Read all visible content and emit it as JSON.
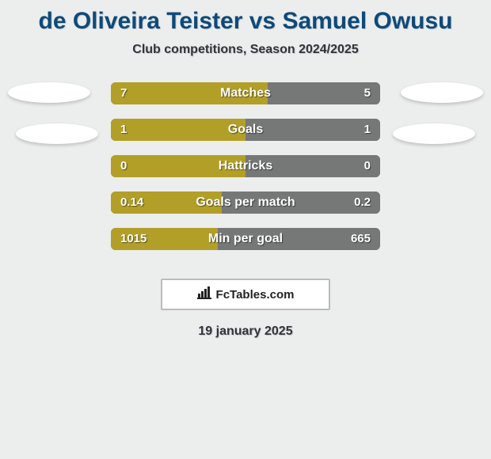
{
  "title_color": "#0d4a7a",
  "text_color": "#31343a",
  "background_color": "#eceded",
  "title": "de Oliveira Teister vs Samuel Owusu",
  "subtitle": "Club competitions, Season 2024/2025",
  "date": "19 january 2025",
  "attribution": "FcTables.com",
  "bar_track_color": "#767777",
  "bar_left_color": "#b29f28",
  "bar_right_color": "#767777",
  "rows": [
    {
      "label": "Matches",
      "left": "7",
      "right": "5",
      "left_pct": 58.3,
      "right_pct": 41.7
    },
    {
      "label": "Goals",
      "left": "1",
      "right": "1",
      "left_pct": 50.0,
      "right_pct": 50.0
    },
    {
      "label": "Hattricks",
      "left": "0",
      "right": "0",
      "left_pct": 50.0,
      "right_pct": 50.0
    },
    {
      "label": "Goals per match",
      "left": "0.14",
      "right": "0.2",
      "left_pct": 41.2,
      "right_pct": 58.8
    },
    {
      "label": "Min per goal",
      "left": "1015",
      "right": "665",
      "left_pct": 39.6,
      "right_pct": 60.4
    }
  ]
}
